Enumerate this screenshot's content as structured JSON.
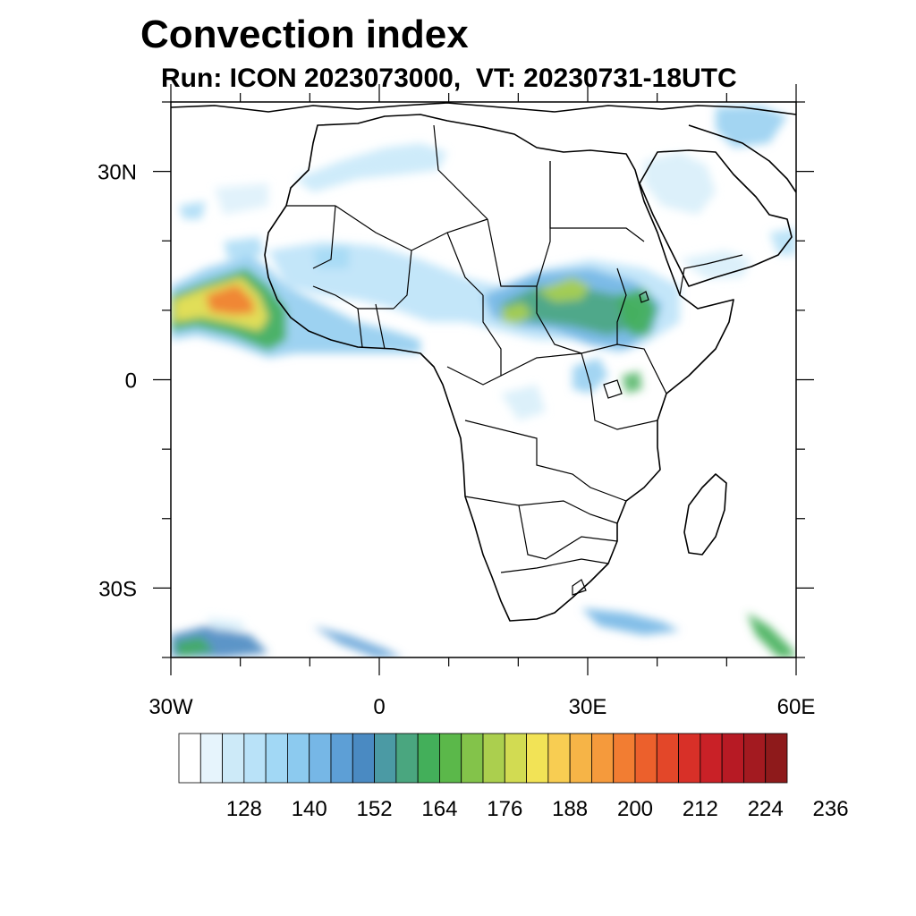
{
  "title": "Convection index",
  "subtitle": "Run: ICON 2023073000,  VT: 20230731-18UTC",
  "map": {
    "extent": {
      "lon_min": -30,
      "lon_max": 60,
      "lat_min": -40,
      "lat_max": 40
    },
    "lat_ticks": [
      {
        "lat": 30,
        "label": "30N"
      },
      {
        "lat": 0,
        "label": "0"
      },
      {
        "lat": -30,
        "label": "30S"
      }
    ],
    "lon_ticks": [
      {
        "lon": -30,
        "label": "30W"
      },
      {
        "lon": 0,
        "label": "0"
      },
      {
        "lon": 30,
        "label": "30E"
      },
      {
        "lon": 60,
        "label": "60E"
      }
    ]
  },
  "colorbar": {
    "colors": [
      "#ffffff",
      "#e6f4fc",
      "#cdeaf8",
      "#b9e2f8",
      "#a2d8f5",
      "#8ccaef",
      "#76b7e6",
      "#5d9fd6",
      "#4a8ac2",
      "#4b9aa4",
      "#4aa67f",
      "#43af5a",
      "#5bb84a",
      "#83c34a",
      "#abcf4e",
      "#d2db52",
      "#f2e356",
      "#f8cd52",
      "#f6b447",
      "#f59a3c",
      "#f27d32",
      "#ec602c",
      "#e34729",
      "#d83028",
      "#c92127",
      "#b71a24",
      "#a31a20",
      "#8e1a1b"
    ],
    "labels": [
      "128",
      "140",
      "152",
      "164",
      "176",
      "188",
      "200",
      "212",
      "224",
      "236"
    ]
  }
}
